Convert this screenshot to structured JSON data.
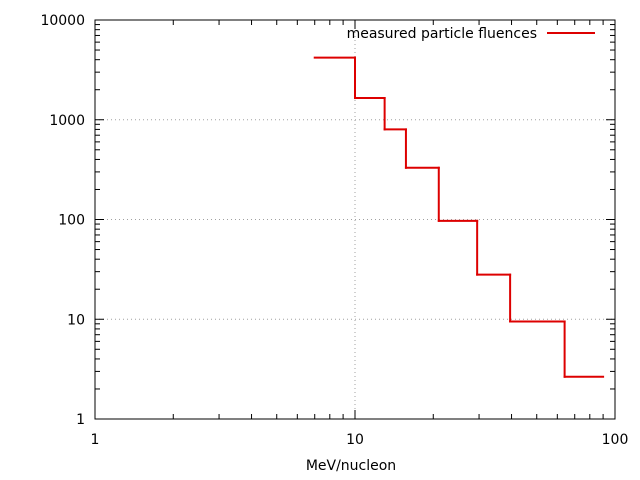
{
  "chart_data": {
    "type": "line",
    "style": "step",
    "title": "",
    "xlabel": "MeV/nucleon",
    "ylabel": "",
    "x_scale": "log",
    "y_scale": "log",
    "xlim": [
      1,
      100
    ],
    "ylim": [
      1,
      10000
    ],
    "grid": true,
    "legend_position": "top-right",
    "x_ticks": [
      {
        "value": 1,
        "label": "1"
      },
      {
        "value": 10,
        "label": "10"
      },
      {
        "value": 100,
        "label": "100"
      }
    ],
    "y_ticks": [
      {
        "value": 1,
        "label": "1"
      },
      {
        "value": 10,
        "label": "10"
      },
      {
        "value": 100,
        "label": "100"
      },
      {
        "value": 1000,
        "label": "1000"
      },
      {
        "value": 10000,
        "label": "10000"
      }
    ],
    "series": [
      {
        "name": "measured particle fluences",
        "color": "#dd0000",
        "bins": [
          {
            "x_start": 7,
            "x_end": 10,
            "y": 4200
          },
          {
            "x_start": 10,
            "x_end": 13,
            "y": 1650
          },
          {
            "x_start": 13,
            "x_end": 15.7,
            "y": 800
          },
          {
            "x_start": 15.7,
            "x_end": 21,
            "y": 330
          },
          {
            "x_start": 21,
            "x_end": 29.5,
            "y": 97
          },
          {
            "x_start": 29.5,
            "x_end": 39.5,
            "y": 28
          },
          {
            "x_start": 39.5,
            "x_end": 64,
            "y": 9.5
          },
          {
            "x_start": 64,
            "x_end": 90,
            "y": 2.65
          }
        ]
      }
    ]
  }
}
